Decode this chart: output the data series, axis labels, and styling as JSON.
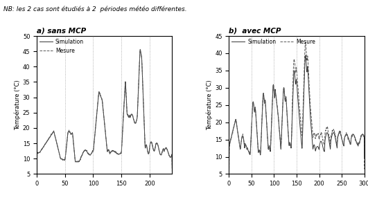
{
  "title_a": "a) sans MCP",
  "title_b": "b)  avec MCP",
  "ylabel": "Température (°C)",
  "nb_text": "NB: les 2 cas sont étudiés à 2  périodes météo différentes.",
  "ax_a": {
    "xlim": [
      0,
      240
    ],
    "ylim": [
      5,
      50
    ],
    "xticks": [
      0,
      50,
      100,
      150,
      200
    ],
    "yticks": [
      5,
      10,
      15,
      20,
      25,
      30,
      35,
      40,
      45,
      50
    ],
    "vlines": [
      50,
      100,
      150,
      200
    ]
  },
  "ax_b": {
    "xlim": [
      0,
      300
    ],
    "ylim": [
      5,
      45
    ],
    "xticks": [
      0,
      50,
      100,
      150,
      200,
      250,
      300
    ],
    "yticks": [
      5,
      10,
      15,
      20,
      25,
      30,
      35,
      40,
      45
    ],
    "vlines": [
      50,
      100,
      150,
      200,
      250
    ]
  },
  "sim_color": "#333333",
  "mes_color": "#555555",
  "line_width": 0.7,
  "vline_style": ":",
  "vline_color": "#999999",
  "bg_color": "#ffffff",
  "legend_sim": "Simulation",
  "legend_mes": "Mesure"
}
